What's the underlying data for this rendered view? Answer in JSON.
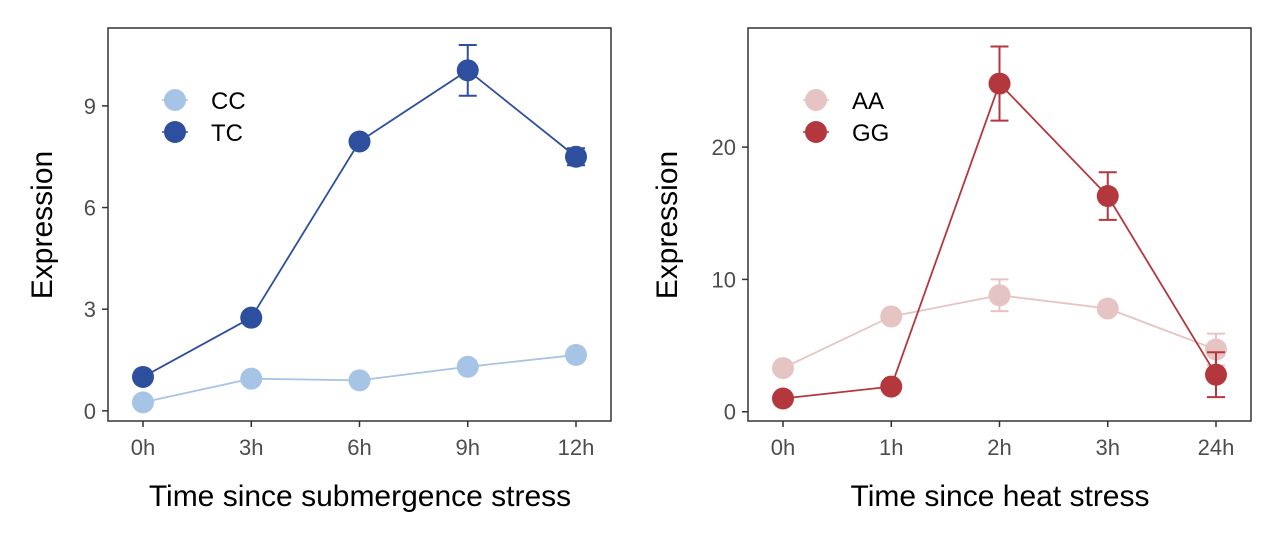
{
  "chart_data": [
    {
      "type": "line",
      "xlabel": "Time since submergence stress",
      "ylabel": "Expression",
      "categories": [
        "0h",
        "3h",
        "6h",
        "9h",
        "12h"
      ],
      "ylim": [
        -0.3,
        11.3
      ],
      "yticks": [
        0,
        3,
        6,
        9
      ],
      "grid": false,
      "legend": "top-left",
      "series": [
        {
          "name": "CC",
          "color": "#a6c4e6",
          "values": [
            0.25,
            0.95,
            0.9,
            1.3,
            1.65
          ],
          "errors": [
            0.1,
            0.1,
            0.1,
            0.1,
            0.1
          ]
        },
        {
          "name": "TC",
          "color": "#2d4f9e",
          "values": [
            1.0,
            2.75,
            7.95,
            10.05,
            7.5
          ],
          "errors": [
            0.05,
            0.1,
            0.1,
            0.75,
            0.25
          ]
        }
      ]
    },
    {
      "type": "line",
      "xlabel": "Time since heat stress",
      "ylabel": "Expression",
      "categories": [
        "0h",
        "1h",
        "2h",
        "3h",
        "24h"
      ],
      "ylim": [
        -0.7,
        29.0
      ],
      "yticks": [
        0,
        10,
        20
      ],
      "grid": false,
      "legend": "top-left",
      "series": [
        {
          "name": "AA",
          "color": "#e6c4c4",
          "values": [
            3.3,
            7.2,
            8.8,
            7.8,
            4.7
          ],
          "errors": [
            0.3,
            0.3,
            1.2,
            0.3,
            1.2
          ]
        },
        {
          "name": "GG",
          "color": "#b5373e",
          "values": [
            1.0,
            1.9,
            24.8,
            16.3,
            2.8
          ],
          "errors": [
            0.2,
            0.3,
            2.8,
            1.8,
            1.7
          ]
        }
      ]
    }
  ]
}
